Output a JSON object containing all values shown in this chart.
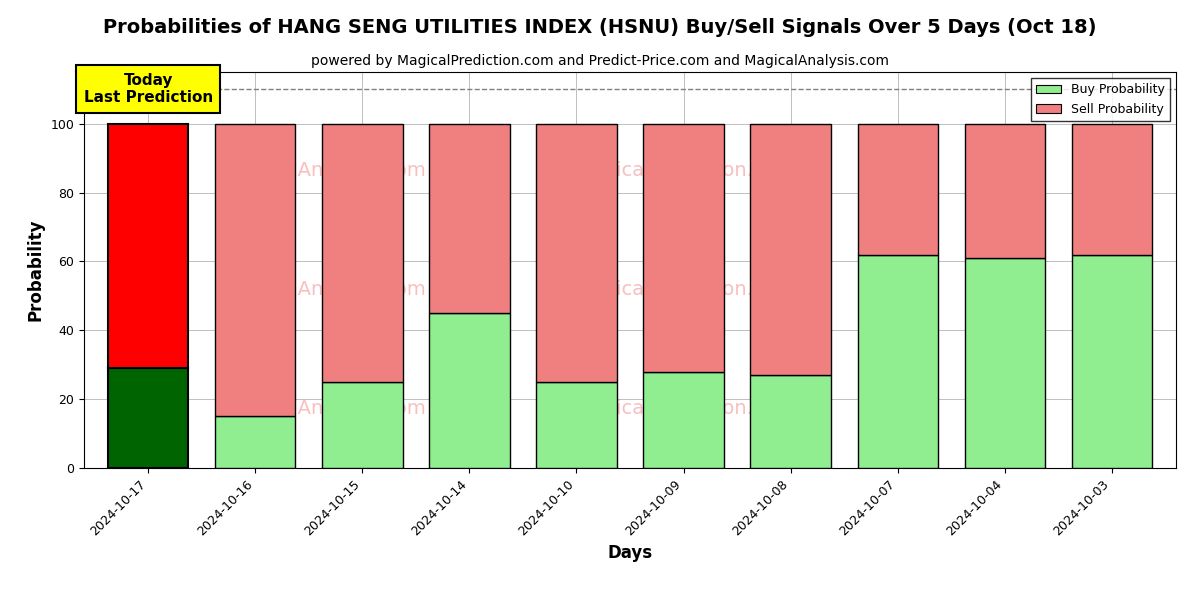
{
  "title": "Probabilities of HANG SENG UTILITIES INDEX (HSNU) Buy/Sell Signals Over 5 Days (Oct 18)",
  "subtitle": "powered by MagicalPrediction.com and Predict-Price.com and MagicalAnalysis.com",
  "xlabel": "Days",
  "ylabel": "Probability",
  "categories": [
    "2024-10-17",
    "2024-10-16",
    "2024-10-15",
    "2024-10-14",
    "2024-10-10",
    "2024-10-09",
    "2024-10-08",
    "2024-10-07",
    "2024-10-04",
    "2024-10-03"
  ],
  "buy_values": [
    29,
    15,
    25,
    45,
    25,
    28,
    27,
    62,
    61,
    62
  ],
  "sell_values": [
    71,
    85,
    75,
    55,
    75,
    72,
    73,
    38,
    39,
    38
  ],
  "today_buy_color": "#006400",
  "today_sell_color": "#ff0000",
  "buy_color": "#90ee90",
  "sell_color": "#f08080",
  "today_annotation_text": "Today\nLast Prediction",
  "today_annotation_bg": "#ffff00",
  "dashed_line_y": 110,
  "ylim": [
    0,
    115
  ],
  "yticks": [
    0,
    20,
    40,
    60,
    80,
    100
  ],
  "legend_buy_label": "Buy Probability",
  "legend_sell_label": "Sell Probability",
  "title_fontsize": 14,
  "subtitle_fontsize": 10,
  "axis_label_fontsize": 12,
  "tick_fontsize": 9,
  "bar_width": 0.75
}
